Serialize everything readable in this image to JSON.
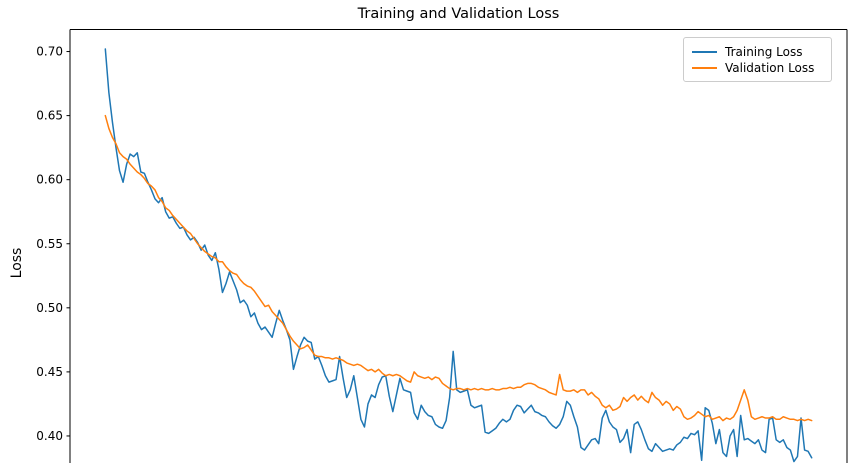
{
  "figure": {
    "title": "Training and Validation Loss",
    "ylabel": "Loss",
    "background": "#ffffff",
    "spine_color": "#000000",
    "tick_label_color": "#000000"
  },
  "legend": {
    "position": "upper right",
    "border_color": "#cccccc"
  },
  "chart_data": {
    "type": "line",
    "title": "Training and Validation Loss",
    "xlabel": "",
    "ylabel": "Loss",
    "grid": false,
    "legend_position": "upper right",
    "x_description": "epoch index 0-199 (x-axis cropped out of view at bottom of screenshot)",
    "xlim": [
      -9.95,
      208.95
    ],
    "ylim_visible": [
      0.3789,
      0.7172
    ],
    "yticks": [
      0.4,
      0.45,
      0.5,
      0.55,
      0.6,
      0.65,
      0.7
    ],
    "series": [
      {
        "name": "Training Loss",
        "color": "#1f77b4",
        "values": [
          0.702,
          0.668,
          0.645,
          0.625,
          0.607,
          0.598,
          0.612,
          0.62,
          0.618,
          0.621,
          0.606,
          0.605,
          0.598,
          0.592,
          0.585,
          0.582,
          0.586,
          0.575,
          0.57,
          0.571,
          0.566,
          0.562,
          0.563,
          0.557,
          0.553,
          0.555,
          0.551,
          0.545,
          0.549,
          0.541,
          0.537,
          0.543,
          0.53,
          0.512,
          0.519,
          0.528,
          0.521,
          0.514,
          0.504,
          0.506,
          0.502,
          0.493,
          0.496,
          0.488,
          0.483,
          0.485,
          0.481,
          0.477,
          0.488,
          0.498,
          0.49,
          0.483,
          0.475,
          0.452,
          0.462,
          0.471,
          0.477,
          0.474,
          0.473,
          0.46,
          0.462,
          0.455,
          0.447,
          0.442,
          0.443,
          0.444,
          0.462,
          0.445,
          0.43,
          0.436,
          0.447,
          0.43,
          0.413,
          0.407,
          0.425,
          0.432,
          0.43,
          0.44,
          0.446,
          0.447,
          0.431,
          0.419,
          0.432,
          0.445,
          0.436,
          0.435,
          0.434,
          0.418,
          0.413,
          0.424,
          0.419,
          0.416,
          0.415,
          0.409,
          0.407,
          0.406,
          0.412,
          0.43,
          0.466,
          0.436,
          0.434,
          0.435,
          0.436,
          0.424,
          0.422,
          0.423,
          0.424,
          0.403,
          0.402,
          0.404,
          0.406,
          0.41,
          0.413,
          0.411,
          0.413,
          0.42,
          0.424,
          0.423,
          0.418,
          0.421,
          0.424,
          0.419,
          0.418,
          0.416,
          0.415,
          0.411,
          0.408,
          0.406,
          0.409,
          0.415,
          0.427,
          0.424,
          0.415,
          0.407,
          0.391,
          0.389,
          0.393,
          0.397,
          0.398,
          0.394,
          0.414,
          0.42,
          0.411,
          0.407,
          0.405,
          0.395,
          0.398,
          0.405,
          0.387,
          0.409,
          0.411,
          0.405,
          0.397,
          0.39,
          0.388,
          0.394,
          0.391,
          0.388,
          0.389,
          0.39,
          0.389,
          0.393,
          0.395,
          0.399,
          0.398,
          0.402,
          0.401,
          0.404,
          0.381,
          0.422,
          0.42,
          0.41,
          0.394,
          0.405,
          0.387,
          0.384,
          0.4,
          0.405,
          0.384,
          0.416,
          0.397,
          0.398,
          0.396,
          0.394,
          0.397,
          0.389,
          0.387,
          0.413,
          0.414,
          0.397,
          0.395,
          0.397,
          0.391,
          0.389,
          0.38,
          0.384,
          0.414,
          0.389,
          0.388,
          0.383
        ]
      },
      {
        "name": "Validation Loss",
        "color": "#ff7f0e",
        "values": [
          0.65,
          0.64,
          0.633,
          0.628,
          0.621,
          0.618,
          0.616,
          0.612,
          0.609,
          0.606,
          0.604,
          0.601,
          0.597,
          0.595,
          0.592,
          0.586,
          0.583,
          0.578,
          0.576,
          0.572,
          0.569,
          0.566,
          0.563,
          0.56,
          0.558,
          0.554,
          0.55,
          0.547,
          0.544,
          0.542,
          0.54,
          0.539,
          0.536,
          0.536,
          0.532,
          0.529,
          0.527,
          0.526,
          0.522,
          0.519,
          0.517,
          0.516,
          0.513,
          0.509,
          0.505,
          0.501,
          0.502,
          0.497,
          0.494,
          0.491,
          0.488,
          0.483,
          0.478,
          0.474,
          0.471,
          0.468,
          0.469,
          0.471,
          0.467,
          0.463,
          0.462,
          0.462,
          0.461,
          0.461,
          0.46,
          0.461,
          0.46,
          0.459,
          0.457,
          0.456,
          0.455,
          0.456,
          0.455,
          0.453,
          0.451,
          0.452,
          0.45,
          0.452,
          0.449,
          0.447,
          0.448,
          0.447,
          0.448,
          0.447,
          0.445,
          0.443,
          0.442,
          0.45,
          0.447,
          0.446,
          0.445,
          0.446,
          0.444,
          0.446,
          0.445,
          0.441,
          0.439,
          0.437,
          0.436,
          0.437,
          0.437,
          0.436,
          0.437,
          0.436,
          0.437,
          0.436,
          0.437,
          0.436,
          0.436,
          0.437,
          0.436,
          0.436,
          0.437,
          0.437,
          0.438,
          0.437,
          0.438,
          0.438,
          0.44,
          0.441,
          0.441,
          0.44,
          0.438,
          0.437,
          0.436,
          0.434,
          0.433,
          0.432,
          0.448,
          0.436,
          0.435,
          0.435,
          0.436,
          0.434,
          0.436,
          0.436,
          0.432,
          0.434,
          0.431,
          0.429,
          0.424,
          0.422,
          0.424,
          0.42,
          0.421,
          0.423,
          0.43,
          0.427,
          0.43,
          0.432,
          0.428,
          0.431,
          0.428,
          0.426,
          0.434,
          0.43,
          0.428,
          0.424,
          0.427,
          0.425,
          0.42,
          0.423,
          0.421,
          0.415,
          0.413,
          0.414,
          0.416,
          0.419,
          0.417,
          0.415,
          0.416,
          0.413,
          0.414,
          0.415,
          0.412,
          0.414,
          0.413,
          0.415,
          0.42,
          0.428,
          0.436,
          0.428,
          0.415,
          0.413,
          0.414,
          0.415,
          0.414,
          0.414,
          0.415,
          0.413,
          0.413,
          0.415,
          0.414,
          0.413,
          0.413,
          0.412,
          0.413,
          0.412,
          0.413,
          0.412
        ]
      }
    ]
  }
}
